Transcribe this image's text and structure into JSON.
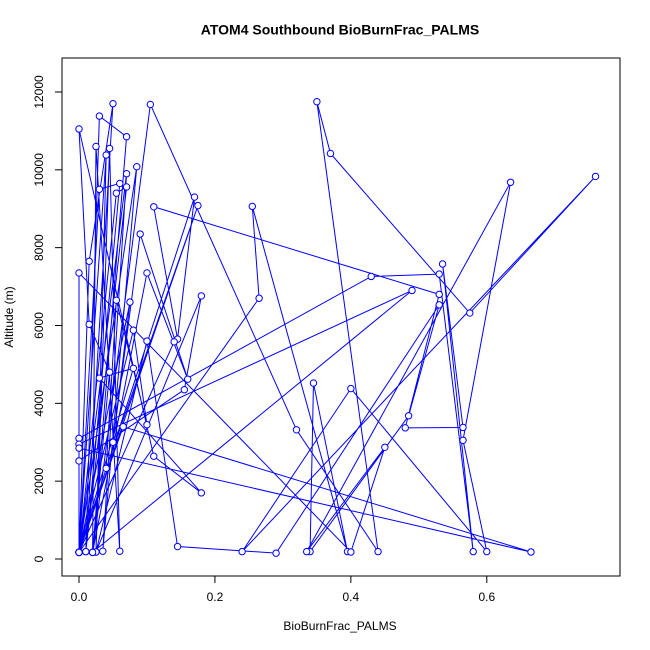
{
  "chart_data": {
    "type": "line",
    "title": "ATOM4 Southbound BioBurnFrac_PALMS",
    "x_label": "BioBurnFrac_PALMS",
    "y_label": "Altitude (m)",
    "color": "#0000ff",
    "xlim": [
      -0.025,
      0.796
    ],
    "ylim": [
      -437,
      12873
    ],
    "xticks": [
      {
        "value": 0,
        "label": "0.0"
      },
      {
        "value": 0.2,
        "label": "0.2"
      },
      {
        "value": 0.4,
        "label": "0.4"
      },
      {
        "value": 0.6,
        "label": "0.6"
      }
    ],
    "yticks": [
      0,
      2000,
      4000,
      6000,
      8000,
      10000,
      12000
    ],
    "grid": false,
    "markers": true,
    "x": [
      0,
      0.015,
      0.05,
      0.01,
      0.03,
      0.07,
      0.02,
      0.025,
      0.06,
      0.045,
      0.025,
      0.04,
      0,
      0.085,
      0.035,
      0.07,
      0,
      0.03,
      0.06,
      0.01,
      0.07,
      0.055,
      0,
      0.17,
      0.145,
      0.11,
      0.53,
      0.48,
      0.565,
      0.535,
      0.58,
      0.53,
      0.43,
      0,
      0,
      0.49,
      0.02,
      0.1,
      0.16,
      0.09,
      0.05,
      0.075,
      0,
      0.175,
      0.04,
      0.055,
      0.1,
      0.08,
      0,
      0.265,
      0.255,
      0.395,
      0.345,
      0.34,
      0.485,
      0.53,
      0.29,
      0.145,
      0.1,
      0.025,
      0.18,
      0.155,
      0,
      0,
      0.665,
      0.065,
      0,
      0.14,
      0,
      0.08,
      0.03,
      0.18,
      0.11,
      0,
      0.015,
      0.045,
      0.02,
      0.105,
      0.32,
      0.44,
      0.35,
      0.37,
      0.575,
      0.76,
      0.24,
      0.4,
      0.6,
      0.565,
      0.635,
      0.335,
      0.45,
      0.4,
      0,
      0
    ],
    "values": [
      170,
      7650,
      11700,
      190,
      11380,
      10850,
      170,
      10600,
      200,
      10550,
      180,
      10380,
      170,
      10080,
      200,
      9900,
      170,
      9500,
      9650,
      190,
      9560,
      9400,
      170,
      9300,
      5650,
      9050,
      6800,
      3370,
      3380,
      7580,
      190,
      7320,
      7260,
      3100,
      2950,
      6900,
      170,
      7350,
      4620,
      8350,
      3000,
      6600,
      170,
      9080,
      2330,
      6650,
      3450,
      5880,
      170,
      6700,
      9060,
      190,
      4520,
      190,
      3680,
      6530,
      150,
      320,
      5600,
      180,
      6760,
      4350,
      2520,
      2850,
      180,
      3400,
      170,
      5580,
      170,
      4900,
      4650,
      1700,
      2640,
      11050,
      6030,
      4800,
      170,
      11680,
      3320,
      190,
      11750,
      10420,
      6320,
      9830,
      190,
      4380,
      190,
      3050,
      9680,
      190,
      2870,
      180,
      7350,
      170
    ]
  }
}
